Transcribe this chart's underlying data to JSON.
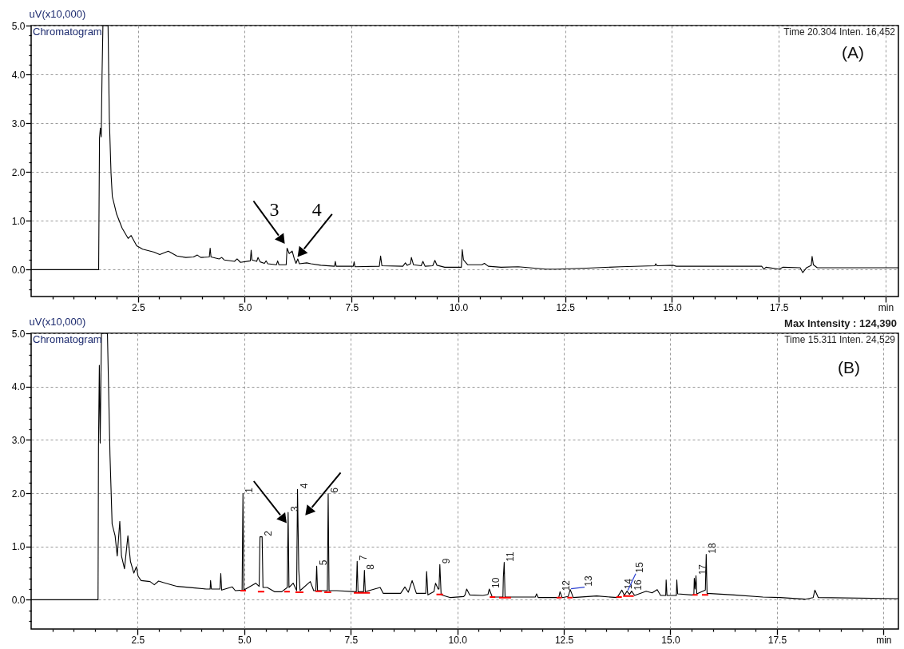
{
  "chart_data": [
    {
      "type": "line",
      "ylabel": "uV(x10,000)",
      "xlim": [
        0,
        20.3
      ],
      "ylim": [
        -0.55,
        5
      ],
      "xticks": [
        {
          "value": 0.5,
          "label": null
        },
        {
          "value": 1,
          "label": null
        },
        {
          "value": 1.5,
          "label": null
        },
        {
          "value": 2,
          "label": null
        },
        2.5,
        {
          "value": 3,
          "label": null
        },
        {
          "value": 3.5,
          "label": null
        },
        {
          "value": 4,
          "label": null
        },
        {
          "value": 4.5,
          "label": null
        },
        {
          "value": 5,
          "label": "5.0"
        },
        {
          "value": 5.5,
          "label": null
        },
        {
          "value": 6,
          "label": null
        },
        {
          "value": 6.5,
          "label": null
        },
        {
          "value": 7,
          "label": null
        },
        7.5,
        {
          "value": 8,
          "label": null
        },
        {
          "value": 8.5,
          "label": null
        },
        {
          "value": 9,
          "label": null
        },
        {
          "value": 9.5,
          "label": null
        },
        {
          "value": 10,
          "label": "10.0"
        },
        {
          "value": 10.5,
          "label": null
        },
        {
          "value": 11,
          "label": null
        },
        {
          "value": 11.5,
          "label": null
        },
        {
          "value": 12,
          "label": null
        },
        12.5,
        {
          "value": 13,
          "label": null
        },
        {
          "value": 13.5,
          "label": null
        },
        {
          "value": 14,
          "label": null
        },
        {
          "value": 14.5,
          "label": null
        },
        {
          "value": 15,
          "label": "15.0"
        },
        {
          "value": 15.5,
          "label": null
        },
        {
          "value": 16,
          "label": null
        },
        {
          "value": 16.5,
          "label": null
        },
        {
          "value": 17,
          "label": null
        },
        17.5,
        {
          "value": 18,
          "label": null
        },
        {
          "value": 18.5,
          "label": null
        },
        {
          "value": 19,
          "label": null
        },
        {
          "value": 19.5,
          "label": null
        },
        {
          "value": 20,
          "label": "min"
        }
      ],
      "yticks": [
        {
          "value": -0.4,
          "label": null
        },
        {
          "value": -0.2,
          "label": null
        },
        {
          "value": 0,
          "label": "0.0"
        },
        {
          "value": 0.2,
          "label": null
        },
        {
          "value": 0.4,
          "label": null
        },
        {
          "value": 0.6,
          "label": null
        },
        {
          "value": 0.8,
          "label": null
        },
        {
          "value": 1,
          "label": "1.0"
        },
        {
          "value": 1.2,
          "label": null
        },
        {
          "value": 1.4,
          "label": null
        },
        {
          "value": 1.6,
          "label": null
        },
        {
          "value": 1.8,
          "label": null
        },
        {
          "value": 2,
          "label": "2.0"
        },
        {
          "value": 2.2,
          "label": null
        },
        {
          "value": 2.4,
          "label": null
        },
        {
          "value": 2.6,
          "label": null
        },
        {
          "value": 2.8,
          "label": null
        },
        {
          "value": 3,
          "label": "3.0"
        },
        {
          "value": 3.2,
          "label": null
        },
        {
          "value": 3.4,
          "label": null
        },
        {
          "value": 3.6,
          "label": null
        },
        {
          "value": 3.8,
          "label": null
        },
        {
          "value": 4,
          "label": "4.0"
        },
        {
          "value": 4.2,
          "label": null
        },
        {
          "value": 4.4,
          "label": null
        },
        {
          "value": 4.6,
          "label": null
        },
        {
          "value": 4.8,
          "label": null
        },
        {
          "value": 5,
          "label": "5.0"
        }
      ],
      "grid": true,
      "series": [
        {
          "color": "#000000",
          "x": [
            0,
            1.58,
            1.6,
            1.62,
            1.64,
            1.66,
            1.68,
            1.8,
            1.83,
            1.87,
            1.9,
            2.0,
            2.13,
            2.27,
            2.34,
            2.47,
            2.61,
            2.88,
            3.01,
            3.21,
            3.41,
            3.62,
            3.8,
            3.89,
            3.97,
            4.17,
            4.19,
            4.21,
            4.4,
            4.46,
            4.52,
            4.76,
            4.82,
            4.9,
            5.13,
            5.15,
            5.17,
            5.28,
            5.31,
            5.36,
            5.46,
            5.5,
            5.54,
            5.74,
            5.77,
            5.8,
            5.97,
            5.99,
            6.04,
            6.11,
            6.16,
            6.2,
            6.24,
            6.28,
            6.45,
            6.55,
            6.78,
            7.1,
            7.12,
            7.14,
            7.54,
            7.56,
            7.58,
            8.15,
            8.18,
            8.21,
            8.7,
            8.76,
            8.8,
            8.88,
            8.9,
            8.95,
            9.13,
            9.17,
            9.22,
            9.4,
            9.45,
            9.5,
            9.68,
            10.07,
            10.09,
            10.12,
            10.22,
            10.55,
            10.61,
            10.7,
            11.0,
            11.4,
            12.05,
            12.3,
            13.0,
            13.8,
            14.6,
            14.62,
            14.65,
            15.03,
            15.1,
            16.43,
            17.1,
            17.15,
            17.2,
            17.51,
            17.6,
            18.0,
            18.06,
            18.15,
            18.26,
            18.28,
            18.31,
            18.4,
            18.9,
            20.3
          ],
          "values": [
            0,
            0,
            2.7,
            2.9,
            2.72,
            4.0,
            5.0,
            5.0,
            3.1,
            1.97,
            1.5,
            1.14,
            0.85,
            0.64,
            0.7,
            0.49,
            0.42,
            0.36,
            0.31,
            0.38,
            0.28,
            0.25,
            0.26,
            0.3,
            0.25,
            0.26,
            0.44,
            0.26,
            0.22,
            0.25,
            0.2,
            0.17,
            0.22,
            0.15,
            0.18,
            0.4,
            0.2,
            0.17,
            0.25,
            0.16,
            0.13,
            0.18,
            0.12,
            0.1,
            0.18,
            0.1,
            0.1,
            0.44,
            0.33,
            0.38,
            0.22,
            0.13,
            0.22,
            0.12,
            0.14,
            0.12,
            0.09,
            0.07,
            0.17,
            0.07,
            0.07,
            0.16,
            0.06,
            0.07,
            0.28,
            0.08,
            0.07,
            0.14,
            0.09,
            0.12,
            0.25,
            0.1,
            0.08,
            0.17,
            0.07,
            0.08,
            0.19,
            0.09,
            0.05,
            0.05,
            0.41,
            0.2,
            0.1,
            0.1,
            0.13,
            0.07,
            0.05,
            0.06,
            0.01,
            0.01,
            0.03,
            0.06,
            0.08,
            0.12,
            0.08,
            0.09,
            0.07,
            0.07,
            0.07,
            0.01,
            0.05,
            0.01,
            0.05,
            0.04,
            -0.06,
            0.04,
            0.09,
            0.27,
            0.1,
            0.04,
            0.04,
            0.04
          ]
        }
      ],
      "annotations": [
        "Chromatogram",
        "Time 20.304 Inten. 16,452",
        "(A)",
        {
          "text": "3",
          "x": 5.99,
          "y": 0.44
        },
        {
          "text": "4",
          "x": 6.24,
          "y": 0.22
        }
      ]
    },
    {
      "type": "line",
      "ylabel": "uV(x10,000)",
      "xlim": [
        0,
        20.35
      ],
      "ylim": [
        -0.55,
        5
      ],
      "xticks": [
        {
          "value": 0.5,
          "label": null
        },
        {
          "value": 1,
          "label": null
        },
        {
          "value": 1.5,
          "label": null
        },
        {
          "value": 2,
          "label": null
        },
        2.5,
        {
          "value": 3,
          "label": null
        },
        {
          "value": 3.5,
          "label": null
        },
        {
          "value": 4,
          "label": null
        },
        {
          "value": 4.5,
          "label": null
        },
        {
          "value": 5,
          "label": "5.0"
        },
        {
          "value": 5.5,
          "label": null
        },
        {
          "value": 6,
          "label": null
        },
        {
          "value": 6.5,
          "label": null
        },
        {
          "value": 7,
          "label": null
        },
        7.5,
        {
          "value": 8,
          "label": null
        },
        {
          "value": 8.5,
          "label": null
        },
        {
          "value": 9,
          "label": null
        },
        {
          "value": 9.5,
          "label": null
        },
        {
          "value": 10,
          "label": "10.0"
        },
        {
          "value": 10.5,
          "label": null
        },
        {
          "value": 11,
          "label": null
        },
        {
          "value": 11.5,
          "label": null
        },
        {
          "value": 12,
          "label": null
        },
        12.5,
        {
          "value": 13,
          "label": null
        },
        {
          "value": 13.5,
          "label": null
        },
        {
          "value": 14,
          "label": null
        },
        {
          "value": 14.5,
          "label": null
        },
        {
          "value": 15,
          "label": "15.0"
        },
        {
          "value": 15.5,
          "label": null
        },
        {
          "value": 16,
          "label": null
        },
        {
          "value": 16.5,
          "label": null
        },
        {
          "value": 17,
          "label": null
        },
        17.5,
        {
          "value": 18,
          "label": null
        },
        {
          "value": 18.5,
          "label": null
        },
        {
          "value": 19,
          "label": null
        },
        {
          "value": 19.5,
          "label": null
        },
        {
          "value": 20,
          "label": "min"
        }
      ],
      "yticks": [
        {
          "value": -0.4,
          "label": null
        },
        {
          "value": -0.2,
          "label": null
        },
        {
          "value": 0,
          "label": "0.0"
        },
        {
          "value": 0.2,
          "label": null
        },
        {
          "value": 0.4,
          "label": null
        },
        {
          "value": 0.6,
          "label": null
        },
        {
          "value": 0.8,
          "label": null
        },
        {
          "value": 1,
          "label": "1.0"
        },
        {
          "value": 1.2,
          "label": null
        },
        {
          "value": 1.4,
          "label": null
        },
        {
          "value": 1.6,
          "label": null
        },
        {
          "value": 1.8,
          "label": null
        },
        {
          "value": 2,
          "label": "2.0"
        },
        {
          "value": 2.2,
          "label": null
        },
        {
          "value": 2.4,
          "label": null
        },
        {
          "value": 2.6,
          "label": null
        },
        {
          "value": 2.8,
          "label": null
        },
        {
          "value": 3,
          "label": "3.0"
        },
        {
          "value": 3.2,
          "label": null
        },
        {
          "value": 3.4,
          "label": null
        },
        {
          "value": 3.6,
          "label": null
        },
        {
          "value": 3.8,
          "label": null
        },
        {
          "value": 4,
          "label": "4.0"
        },
        {
          "value": 4.2,
          "label": null
        },
        {
          "value": 4.4,
          "label": null
        },
        {
          "value": 4.6,
          "label": null
        },
        {
          "value": 4.8,
          "label": null
        },
        {
          "value": 5,
          "label": "5.0"
        }
      ],
      "grid": true,
      "series": [
        {
          "color": "#000000",
          "x": [
            0,
            1.57,
            1.58,
            1.6,
            1.62,
            1.65,
            1.79,
            1.81,
            1.85,
            1.9,
            1.97,
            2.02,
            2.08,
            2.12,
            2.19,
            2.27,
            2.33,
            2.41,
            2.47,
            2.51,
            2.58,
            2.79,
            2.89,
            2.99,
            3.16,
            3.43,
            3.84,
            4.11,
            4.2,
            4.21,
            4.23,
            4.43,
            4.45,
            4.47,
            4.72,
            4.79,
            4.95,
            4.97,
            4.99,
            5.27,
            5.35,
            5.37,
            5.42,
            5.44,
            5.54,
            5.71,
            5.88,
            6.01,
            6.03,
            6.05,
            6.15,
            6.23,
            6.25,
            6.28,
            6.31,
            6.55,
            6.63,
            6.68,
            6.7,
            6.72,
            6.95,
            6.97,
            6.99,
            7.17,
            7.63,
            7.65,
            7.67,
            7.8,
            7.82,
            7.84,
            8.19,
            8.26,
            8.67,
            8.77,
            8.85,
            8.94,
            9.04,
            9.26,
            9.28,
            9.31,
            9.45,
            9.49,
            9.55,
            9.57,
            9.59,
            9.62,
            9.84,
            10.15,
            10.18,
            10.22,
            10.29,
            10.6,
            10.72,
            10.75,
            10.82,
            11.07,
            11.08,
            11.1,
            11.12,
            11.83,
            11.86,
            11.9,
            12.38,
            12.41,
            12.46,
            12.6,
            12.65,
            12.72,
            13.27,
            13.75,
            13.86,
            13.92,
            13.98,
            14.04,
            14.09,
            14.16,
            14.43,
            14.57,
            14.69,
            14.77,
            14.89,
            14.9,
            14.92,
            15.14,
            15.15,
            15.17,
            15.49,
            15.55,
            15.56,
            15.58,
            15.6,
            15.62,
            15.82,
            15.84,
            15.86,
            16.49,
            17.17,
            17.58,
            18.16,
            18.35,
            18.39,
            18.47,
            20.35
          ],
          "values": [
            0,
            0,
            2.88,
            4.4,
            2.94,
            5.0,
            5.0,
            4.24,
            2.72,
            1.42,
            1.2,
            0.82,
            1.47,
            0.82,
            0.58,
            1.2,
            0.72,
            0.5,
            0.62,
            0.44,
            0.36,
            0.34,
            0.28,
            0.35,
            0.31,
            0.25,
            0.22,
            0.2,
            0.2,
            0.36,
            0.2,
            0.2,
            0.49,
            0.18,
            0.24,
            0.17,
            0.18,
            1.99,
            0.18,
            0.31,
            0.25,
            1.18,
            1.18,
            0.23,
            0.23,
            0.15,
            0.15,
            0.23,
            1.64,
            0.23,
            0.31,
            0.17,
            2.07,
            0.55,
            0.17,
            0.34,
            0.17,
            0.17,
            0.63,
            0.17,
            0.17,
            1.99,
            0.17,
            0.17,
            0.15,
            0.72,
            0.15,
            0.15,
            0.55,
            0.15,
            0.23,
            0.12,
            0.12,
            0.24,
            0.14,
            0.36,
            0.12,
            0.12,
            0.53,
            0.09,
            0.15,
            0.31,
            0.2,
            0.2,
            0.66,
            0.09,
            0.04,
            0.06,
            0.09,
            0.2,
            0.09,
            0.08,
            0.1,
            0.2,
            0.05,
            0.05,
            0.42,
            0.7,
            0.05,
            0.05,
            0.11,
            0.04,
            0.04,
            0.15,
            0.04,
            0.06,
            0.19,
            0.04,
            0.07,
            0.04,
            0.18,
            0.08,
            0.16,
            0.1,
            0.16,
            0.08,
            0.16,
            0.13,
            0.19,
            0.08,
            0.08,
            0.37,
            0.08,
            0.08,
            0.37,
            0.11,
            0.09,
            0.09,
            0.4,
            0.2,
            0.45,
            0.11,
            0.18,
            0.85,
            0.12,
            0.09,
            0.05,
            0.04,
            0.01,
            0.04,
            0.18,
            0.04,
            0.02
          ]
        },
        {
          "color": "#ff0000",
          "x": [
            4.91,
            5.04,
            5.05,
            5.32,
            5.47,
            5.48,
            5.94,
            6.07,
            6.08,
            6.2,
            6.39,
            6.4,
            6.67,
            6.82,
            6.83,
            6.88,
            7.04,
            7.05,
            7.57,
            7.95,
            7.96,
            9.51,
            9.67,
            9.68,
            10.76,
            10.89,
            10.9,
            10.98,
            11.26,
            11.27,
            12.33,
            12.45,
            12.46,
            12.58,
            12.7,
            12.71,
            13.73,
            13.86,
            13.87,
            13.89,
            14.14,
            14.15,
            15.52,
            15.64,
            15.65,
            15.74,
            15.89
          ],
          "values": [
            0.17,
            0.17,
            null,
            0.15,
            0.15,
            null,
            0.15,
            0.15,
            null,
            0.14,
            0.14,
            null,
            0.16,
            0.16,
            null,
            0.14,
            0.14,
            null,
            0.13,
            0.13,
            null,
            0.1,
            0.1,
            null,
            0.05,
            0.05,
            null,
            0.04,
            0.04,
            null,
            0.04,
            0.04,
            null,
            0.04,
            0.04,
            null,
            0.05,
            0.05,
            null,
            0.07,
            0.07,
            null,
            0.09,
            0.09,
            null,
            0.09,
            0.09
          ]
        }
      ],
      "annotations": [
        "Chromatogram",
        "Max Intensity : 124,390",
        "Time 15.311 Inten. 24,529",
        "(B)",
        {
          "text": "1",
          "x": 4.97,
          "y": 1.99
        },
        {
          "text": "2",
          "x": 5.42,
          "y": 1.18
        },
        {
          "text": "3",
          "x": 6.03,
          "y": 1.64
        },
        {
          "text": "4",
          "x": 6.25,
          "y": 2.07
        },
        {
          "text": "5",
          "x": 6.7,
          "y": 0.63
        },
        {
          "text": "6",
          "x": 6.97,
          "y": 1.99
        },
        {
          "text": "7",
          "x": 7.65,
          "y": 0.72
        },
        {
          "text": "8",
          "x": 7.82,
          "y": 0.55
        },
        {
          "text": "9",
          "x": 9.59,
          "y": 0.66
        },
        {
          "text": "10",
          "x": 10.75,
          "y": 0.2
        },
        {
          "text": "11",
          "x": 11.1,
          "y": 0.7
        },
        {
          "text": "12",
          "x": 12.41,
          "y": 0.15
        },
        {
          "text": "13",
          "x": 12.65,
          "y": 0.19
        },
        {
          "text": "14",
          "x": 13.86,
          "y": 0.18
        },
        {
          "text": "15",
          "x": 13.98,
          "y": 0.16
        },
        {
          "text": "16",
          "x": 14.09,
          "y": 0.16
        },
        {
          "text": "17",
          "x": 15.6,
          "y": 0.45
        },
        {
          "text": "18",
          "x": 15.84,
          "y": 0.85
        }
      ]
    }
  ]
}
